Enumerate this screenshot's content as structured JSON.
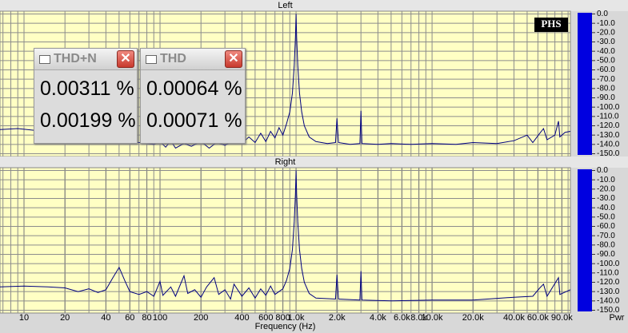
{
  "chart_data": [
    {
      "type": "line",
      "title": "Left",
      "log_x": true,
      "grid": true,
      "xlim": [
        6.66,
        104000
      ],
      "ylim": [
        3,
        -153
      ],
      "yticks": [
        {
          "value": 0,
          "label": "0.0"
        },
        {
          "value": -10,
          "label": "-10.0"
        },
        {
          "value": -20,
          "label": "-20.0"
        },
        {
          "value": -30,
          "label": "-30.0"
        },
        {
          "value": -40,
          "label": "-40.0"
        },
        {
          "value": -50,
          "label": "-50.0"
        },
        {
          "value": -60,
          "label": "-60.0"
        },
        {
          "value": -70,
          "label": "-70.0"
        },
        {
          "value": -80,
          "label": "-80.0"
        },
        {
          "value": -90,
          "label": "-90.0"
        },
        {
          "value": -100,
          "label": "-100.0"
        },
        {
          "value": -110,
          "label": "-110.0"
        },
        {
          "value": -120,
          "label": "-120.0"
        },
        {
          "value": -130,
          "label": "-130.0"
        },
        {
          "value": -140,
          "label": "-140.0"
        },
        {
          "value": -150,
          "label": "-150.0"
        }
      ],
      "series": [
        {
          "color": "#000080",
          "x": [
            6.66,
            9,
            12,
            15,
            20,
            30,
            50,
            70,
            90,
            100,
            110,
            120,
            130,
            150,
            170,
            200,
            230,
            260,
            300,
            350,
            400,
            450,
            500,
            550,
            600,
            650,
            700,
            750,
            800,
            850,
            900,
            940,
            970,
            990,
            1000,
            1010,
            1030,
            1060,
            1100,
            1150,
            1250,
            1400,
            1700,
            1950,
            2000,
            2050,
            2500,
            2950,
            3000,
            3050,
            4000,
            5000,
            7000,
            10000,
            15000,
            20000,
            30000,
            40000,
            50000,
            55000,
            62000,
            66000,
            70000,
            80000,
            85000,
            87000,
            95000,
            104000
          ],
          "values": [
            -124,
            -123,
            -125,
            -127,
            -130,
            -133,
            -136,
            -138,
            -140,
            -137,
            -143,
            -136,
            -144,
            -139,
            -142,
            -137,
            -144,
            -138,
            -141,
            -136,
            -139,
            -132,
            -138,
            -128,
            -137,
            -126,
            -133,
            -122,
            -130,
            -118,
            -105,
            -85,
            -55,
            -25,
            0,
            -25,
            -55,
            -85,
            -105,
            -120,
            -132,
            -137,
            -139,
            -138,
            -112,
            -138,
            -140,
            -139,
            -104,
            -139,
            -140,
            -139,
            -140,
            -139,
            -140,
            -138,
            -139,
            -136,
            -130,
            -138,
            -128,
            -123,
            -135,
            -130,
            -115,
            -132,
            -127,
            -126
          ]
        }
      ]
    },
    {
      "type": "line",
      "title": "Right",
      "xlabel": "Frequency (Hz)",
      "ylabel": "Pwr",
      "log_x": true,
      "grid": true,
      "xlim": [
        6.66,
        104000
      ],
      "ylim": [
        3,
        -153
      ],
      "xticks": [
        10,
        20,
        40,
        60,
        80,
        100,
        200,
        400,
        600,
        800,
        {
          "value": 1000,
          "label": "1.0k"
        },
        {
          "value": 2000,
          "label": "2.0k"
        },
        {
          "value": 4000,
          "label": "4.0k"
        },
        {
          "value": 6000,
          "label": "6.0k"
        },
        {
          "value": 8000,
          "label": "8.0k"
        },
        {
          "value": 10000,
          "label": "10.0k"
        },
        {
          "value": 20000,
          "label": "20.0k"
        },
        {
          "value": 40000,
          "label": "40.0k"
        },
        {
          "value": 60000,
          "label": "60.0k"
        },
        {
          "value": 90000,
          "label": "90.0k"
        }
      ],
      "yticks": [
        {
          "value": 0,
          "label": "0.0"
        },
        {
          "value": -10,
          "label": "-10.0"
        },
        {
          "value": -20,
          "label": "-20.0"
        },
        {
          "value": -30,
          "label": "-30.0"
        },
        {
          "value": -40,
          "label": "-40.0"
        },
        {
          "value": -50,
          "label": "-50.0"
        },
        {
          "value": -60,
          "label": "-60.0"
        },
        {
          "value": -70,
          "label": "-70.0"
        },
        {
          "value": -80,
          "label": "-80.0"
        },
        {
          "value": -90,
          "label": "-90.0"
        },
        {
          "value": -100,
          "label": "-100.0"
        },
        {
          "value": -110,
          "label": "-110.0"
        },
        {
          "value": -120,
          "label": "-120.0"
        },
        {
          "value": -130,
          "label": "-130.0"
        },
        {
          "value": -140,
          "label": "-140.0"
        },
        {
          "value": -150,
          "label": "-150.0"
        }
      ],
      "series": [
        {
          "color": "#000080",
          "x": [
            6.66,
            10,
            15,
            20,
            25,
            30,
            35,
            40,
            45,
            50,
            55,
            60,
            70,
            80,
            90,
            100,
            105,
            120,
            130,
            150,
            160,
            180,
            200,
            220,
            250,
            270,
            300,
            330,
            350,
            400,
            450,
            500,
            550,
            600,
            650,
            700,
            800,
            850,
            900,
            940,
            970,
            990,
            1000,
            1010,
            1030,
            1060,
            1100,
            1150,
            1250,
            1400,
            1950,
            2000,
            2050,
            2950,
            3000,
            3050,
            5000,
            10000,
            20000,
            40000,
            55000,
            62000,
            66000,
            70000,
            85000,
            87000,
            104000
          ],
          "values": [
            -125,
            -124,
            -125,
            -126,
            -130,
            -127,
            -131,
            -128,
            -115,
            -104,
            -118,
            -130,
            -133,
            -130,
            -135,
            -119,
            -134,
            -125,
            -135,
            -113,
            -132,
            -128,
            -136,
            -125,
            -115,
            -133,
            -128,
            -138,
            -122,
            -135,
            -126,
            -137,
            -127,
            -134,
            -124,
            -133,
            -127,
            -118,
            -105,
            -85,
            -55,
            -25,
            0,
            -25,
            -55,
            -85,
            -105,
            -120,
            -132,
            -137,
            -138,
            -112,
            -138,
            -139,
            -108,
            -139,
            -140,
            -139,
            -139,
            -136,
            -135,
            -126,
            -122,
            -135,
            -115,
            -133,
            -128
          ]
        }
      ]
    }
  ],
  "badge": "PHS",
  "windows": [
    {
      "title": "THD+N",
      "values": [
        "0.00311 %",
        "0.00199 %"
      ]
    },
    {
      "title": "THD",
      "values": [
        "0.00064 %",
        "0.00071 %"
      ]
    }
  ]
}
